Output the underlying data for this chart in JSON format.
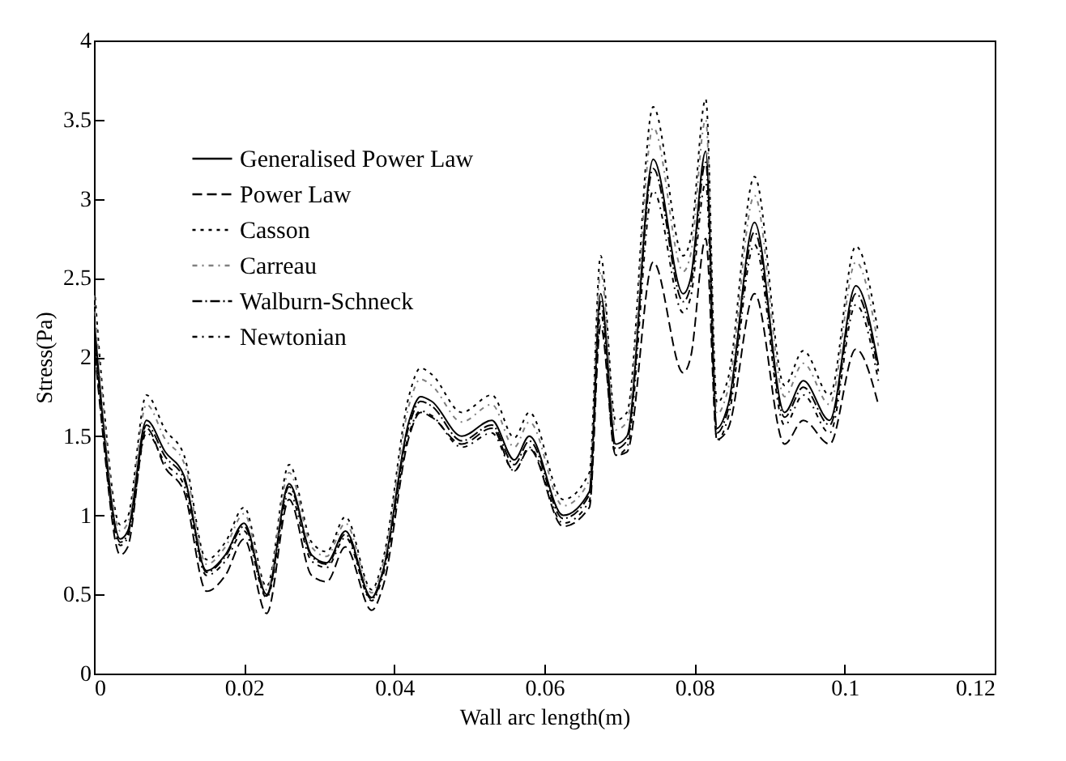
{
  "chart_data": {
    "type": "line",
    "xlabel": "Wall arc length(m)",
    "ylabel": "Stress(Pa)",
    "x": [
      0,
      0.001,
      0.0035,
      0.0045,
      0.007,
      0.0095,
      0.012,
      0.015,
      0.0175,
      0.02,
      0.023,
      0.026,
      0.029,
      0.031,
      0.0335,
      0.037,
      0.0385,
      0.042,
      0.0435,
      0.045,
      0.049,
      0.053,
      0.056,
      0.058,
      0.0625,
      0.066,
      0.0675,
      0.0695,
      0.071,
      0.0745,
      0.0785,
      0.0795,
      0.0815,
      0.083,
      0.0845,
      0.088,
      0.092,
      0.0945,
      0.098,
      0.1015,
      0.1045
    ],
    "series": [
      {
        "name": "Generalised Power Law",
        "color": "#000000",
        "line_style": "solid",
        "values": [
          2.25,
          1.7,
          0.85,
          0.9,
          1.6,
          1.4,
          1.25,
          0.65,
          0.75,
          0.95,
          0.5,
          1.2,
          0.75,
          0.7,
          0.9,
          0.48,
          0.65,
          1.6,
          1.75,
          1.72,
          1.5,
          1.6,
          1.35,
          1.5,
          1.0,
          1.15,
          2.4,
          1.45,
          1.5,
          3.25,
          2.4,
          2.5,
          3.3,
          1.55,
          1.7,
          2.85,
          1.65,
          1.85,
          1.6,
          2.45,
          1.95
        ]
      },
      {
        "name": "Power Law",
        "color": "#000000",
        "line_style": "dashed",
        "values": [
          2.1,
          1.6,
          0.75,
          0.8,
          1.55,
          1.3,
          1.15,
          0.52,
          0.62,
          0.85,
          0.38,
          1.1,
          0.62,
          0.58,
          0.8,
          0.4,
          0.55,
          1.5,
          1.65,
          1.62,
          1.45,
          1.55,
          1.28,
          1.42,
          0.93,
          1.05,
          2.2,
          1.38,
          1.4,
          2.6,
          1.9,
          2.0,
          2.75,
          1.48,
          1.55,
          2.4,
          1.45,
          1.6,
          1.45,
          2.05,
          1.7
        ]
      },
      {
        "name": "Casson",
        "color": "#000000",
        "line_style": "dotted",
        "values": [
          2.48,
          1.87,
          0.94,
          0.99,
          1.76,
          1.54,
          1.38,
          0.72,
          0.83,
          1.05,
          0.55,
          1.32,
          0.83,
          0.77,
          0.99,
          0.53,
          0.72,
          1.76,
          1.93,
          1.89,
          1.65,
          1.76,
          1.49,
          1.65,
          1.1,
          1.27,
          2.64,
          1.6,
          1.65,
          3.58,
          2.64,
          2.75,
          3.63,
          1.71,
          1.87,
          3.14,
          1.82,
          2.04,
          1.76,
          2.7,
          2.15
        ]
      },
      {
        "name": "Carreau",
        "color": "#808080",
        "line_style": "dotted",
        "values": [
          2.39,
          1.8,
          0.9,
          0.95,
          1.7,
          1.48,
          1.33,
          0.69,
          0.8,
          1.01,
          0.53,
          1.27,
          0.8,
          0.74,
          0.95,
          0.51,
          0.69,
          1.7,
          1.86,
          1.82,
          1.59,
          1.7,
          1.43,
          1.59,
          1.06,
          1.22,
          2.54,
          1.54,
          1.59,
          3.45,
          2.54,
          2.65,
          3.5,
          1.64,
          1.8,
          3.02,
          1.75,
          1.96,
          1.7,
          2.6,
          2.07
        ]
      },
      {
        "name": "Walburn-Schneck",
        "color": "#000000",
        "line_style": "dashdot",
        "values": [
          2.21,
          1.67,
          0.83,
          0.88,
          1.57,
          1.37,
          1.23,
          0.64,
          0.74,
          0.93,
          0.49,
          1.18,
          0.74,
          0.69,
          0.88,
          0.47,
          0.64,
          1.57,
          1.72,
          1.69,
          1.47,
          1.57,
          1.32,
          1.47,
          0.98,
          1.13,
          2.35,
          1.42,
          1.47,
          3.19,
          2.35,
          2.45,
          3.23,
          1.52,
          1.67,
          2.79,
          1.62,
          1.81,
          1.57,
          2.4,
          1.91
        ]
      },
      {
        "name": "Newtonian",
        "color": "#000000",
        "line_style": "dashdot",
        "values": [
          2.14,
          1.62,
          0.81,
          0.86,
          1.52,
          1.33,
          1.19,
          0.62,
          0.71,
          0.9,
          0.48,
          1.14,
          0.71,
          0.67,
          0.86,
          0.46,
          0.62,
          1.52,
          1.66,
          1.63,
          1.43,
          1.52,
          1.28,
          1.43,
          0.95,
          1.09,
          2.28,
          1.38,
          1.43,
          3.05,
          2.28,
          2.38,
          3.1,
          1.47,
          1.62,
          2.71,
          1.57,
          1.76,
          1.52,
          2.33,
          1.85
        ]
      }
    ],
    "xlim": [
      0,
      0.12
    ],
    "xticks": [
      0,
      0.02,
      0.04,
      0.06,
      0.08,
      0.1,
      0.12
    ],
    "ylim": [
      0,
      4
    ],
    "yticks": [
      0,
      0.5,
      1,
      1.5,
      2,
      2.5,
      3,
      3.5,
      4
    ],
    "grid": false,
    "legend": "top left"
  }
}
